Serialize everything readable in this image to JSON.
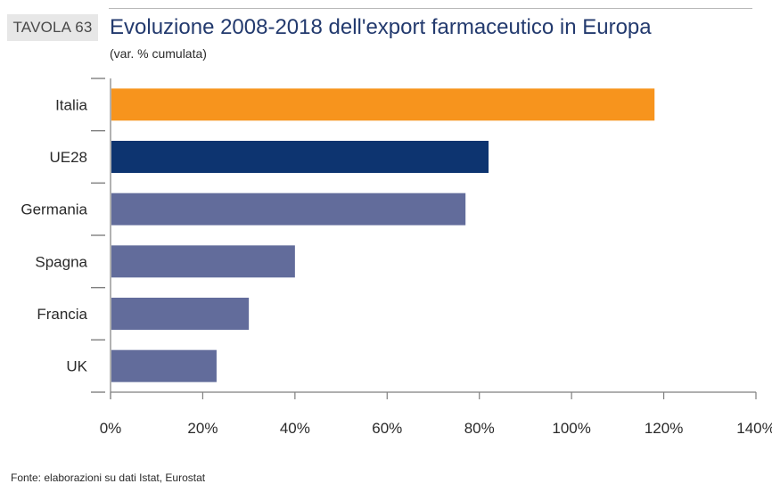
{
  "header": {
    "tag": "TAVOLA 63",
    "title": "Evoluzione 2008-2018 dell'export farmaceutico in Europa",
    "subtitle": "(var. % cumulata)"
  },
  "footer": {
    "source": "Fonte: elaborazioni su dati Istat, Eurostat"
  },
  "colors": {
    "italia": "#f7941d",
    "ue28": "#0d3470",
    "others": "#626c9b",
    "axis": "#7f7f7f"
  },
  "chart_data": {
    "type": "bar",
    "orientation": "horizontal",
    "categories": [
      "Italia",
      "UE28",
      "Germania",
      "Spagna",
      "Francia",
      "UK"
    ],
    "values": [
      118,
      82,
      77,
      40,
      30,
      23
    ],
    "unit": "%",
    "xlim": [
      0,
      140
    ],
    "ticks": [
      0,
      20,
      40,
      60,
      80,
      100,
      120,
      140
    ],
    "tick_labels": [
      "0%",
      "20%",
      "40%",
      "60%",
      "80%",
      "100%",
      "120%",
      "140%"
    ],
    "bar_colors": [
      "#f7941d",
      "#0d3470",
      "#626c9b",
      "#626c9b",
      "#626c9b",
      "#626c9b"
    ],
    "grid": false,
    "legend": "none"
  }
}
